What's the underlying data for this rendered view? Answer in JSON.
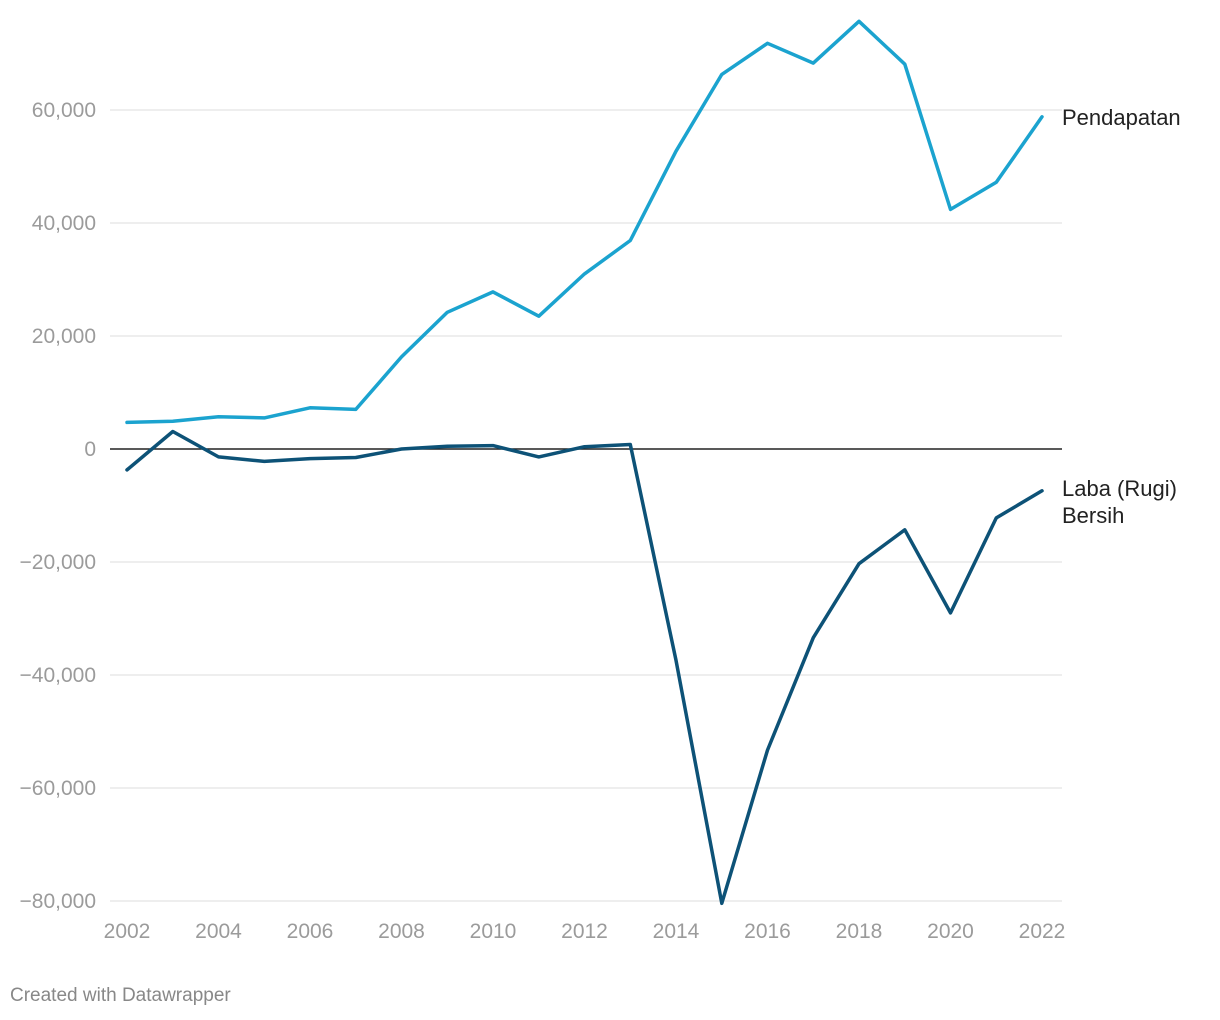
{
  "chart_data": {
    "type": "line",
    "title": "",
    "xlabel": "",
    "ylabel": "",
    "x": [
      2002,
      2003,
      2004,
      2005,
      2006,
      2007,
      2008,
      2009,
      2010,
      2011,
      2012,
      2013,
      2014,
      2015,
      2016,
      2017,
      2018,
      2019,
      2020,
      2021,
      2022
    ],
    "xticks": [
      "2002",
      "2004",
      "2006",
      "2008",
      "2010",
      "2012",
      "2014",
      "2016",
      "2018",
      "2020",
      "2022"
    ],
    "ylim": [
      -80000,
      75000
    ],
    "yticks": [
      60000,
      40000,
      20000,
      0,
      -20000,
      -40000,
      -60000,
      -80000
    ],
    "ytick_labels": [
      "60,000",
      "40,000",
      "20,000",
      "0",
      "−20,000",
      "−40,000",
      "−60,000",
      "−80,000"
    ],
    "grid": true,
    "series": [
      {
        "name": "Pendapatan",
        "label_lines": [
          "Pendapatan"
        ],
        "color": "#1ba3cf",
        "values": [
          4700,
          4900,
          5700,
          5500,
          7300,
          7000,
          16300,
          24200,
          27800,
          23500,
          31000,
          36900,
          52700,
          66300,
          71800,
          68300,
          75700,
          68100,
          42400,
          47200,
          58800
        ]
      },
      {
        "name": "Laba (Rugi) Bersih",
        "label_lines": [
          "Laba (Rugi)",
          "Bersih"
        ],
        "color": "#0d5277",
        "values": [
          -3700,
          3100,
          -1400,
          -2200,
          -1700,
          -1500,
          0,
          500,
          600,
          -1400,
          400,
          800,
          -37400,
          -80400,
          -53300,
          -33400,
          -20300,
          -14300,
          -29000,
          -12200,
          -7400
        ]
      }
    ]
  },
  "footer": "Created with Datawrapper"
}
